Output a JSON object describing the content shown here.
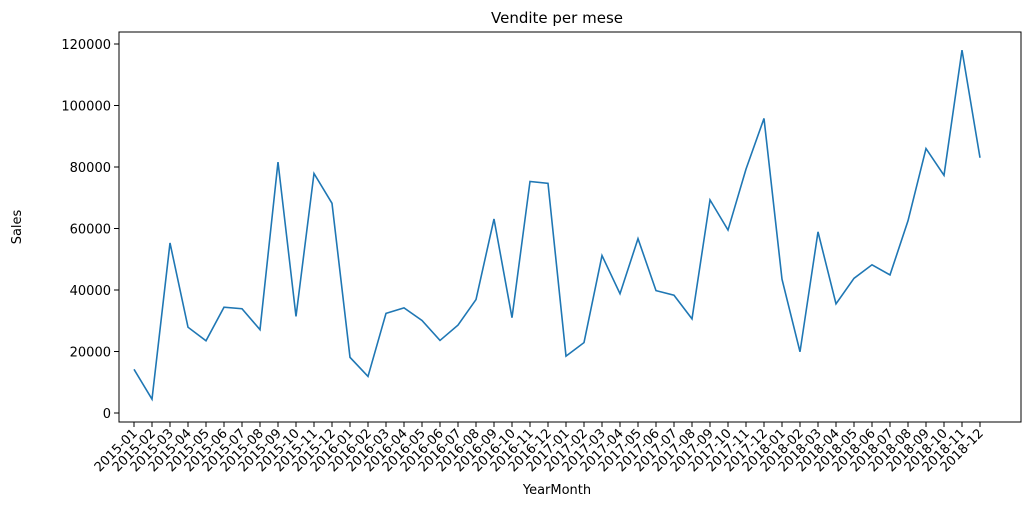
{
  "chart_data": {
    "type": "line",
    "title": "Vendite per mese",
    "xlabel": "YearMonth",
    "ylabel": "Sales",
    "ylim": [
      0,
      120000
    ],
    "yticks": [
      0,
      20000,
      40000,
      60000,
      80000,
      100000,
      120000
    ],
    "grid": false,
    "line_color": "#1f77b4",
    "categories": [
      "2015-01",
      "2015-02",
      "2015-03",
      "2015-04",
      "2015-05",
      "2015-06",
      "2015-07",
      "2015-08",
      "2015-09",
      "2015-10",
      "2015-11",
      "2015-12",
      "2016-01",
      "2016-02",
      "2016-03",
      "2016-04",
      "2016-05",
      "2016-06",
      "2016-07",
      "2016-08",
      "2016-09",
      "2016-10",
      "2016-11",
      "2016-12",
      "2017-01",
      "2017-02",
      "2017-03",
      "2017-04",
      "2017-05",
      "2017-06",
      "2017-07",
      "2017-08",
      "2017-09",
      "2017-10",
      "2017-11",
      "2017-12",
      "2018-01",
      "2018-02",
      "2018-03",
      "2018-04",
      "2018-05",
      "2018-06",
      "2018-07",
      "2018-08",
      "2018-09",
      "2018-10",
      "2018-11",
      "2018-12"
    ],
    "values": [
      14200,
      4500,
      55300,
      27900,
      23500,
      34400,
      33900,
      27100,
      81600,
      31400,
      77900,
      68200,
      18100,
      11900,
      32400,
      34200,
      30100,
      23600,
      28600,
      36900,
      63100,
      31000,
      75300,
      74700,
      18500,
      22900,
      51200,
      38800,
      56700,
      39800,
      38300,
      30600,
      69300,
      59500,
      79300,
      95800,
      43500,
      19900,
      58900,
      35500,
      43800,
      48200,
      44900,
      62500,
      86000,
      77300,
      118000,
      83000
    ]
  }
}
